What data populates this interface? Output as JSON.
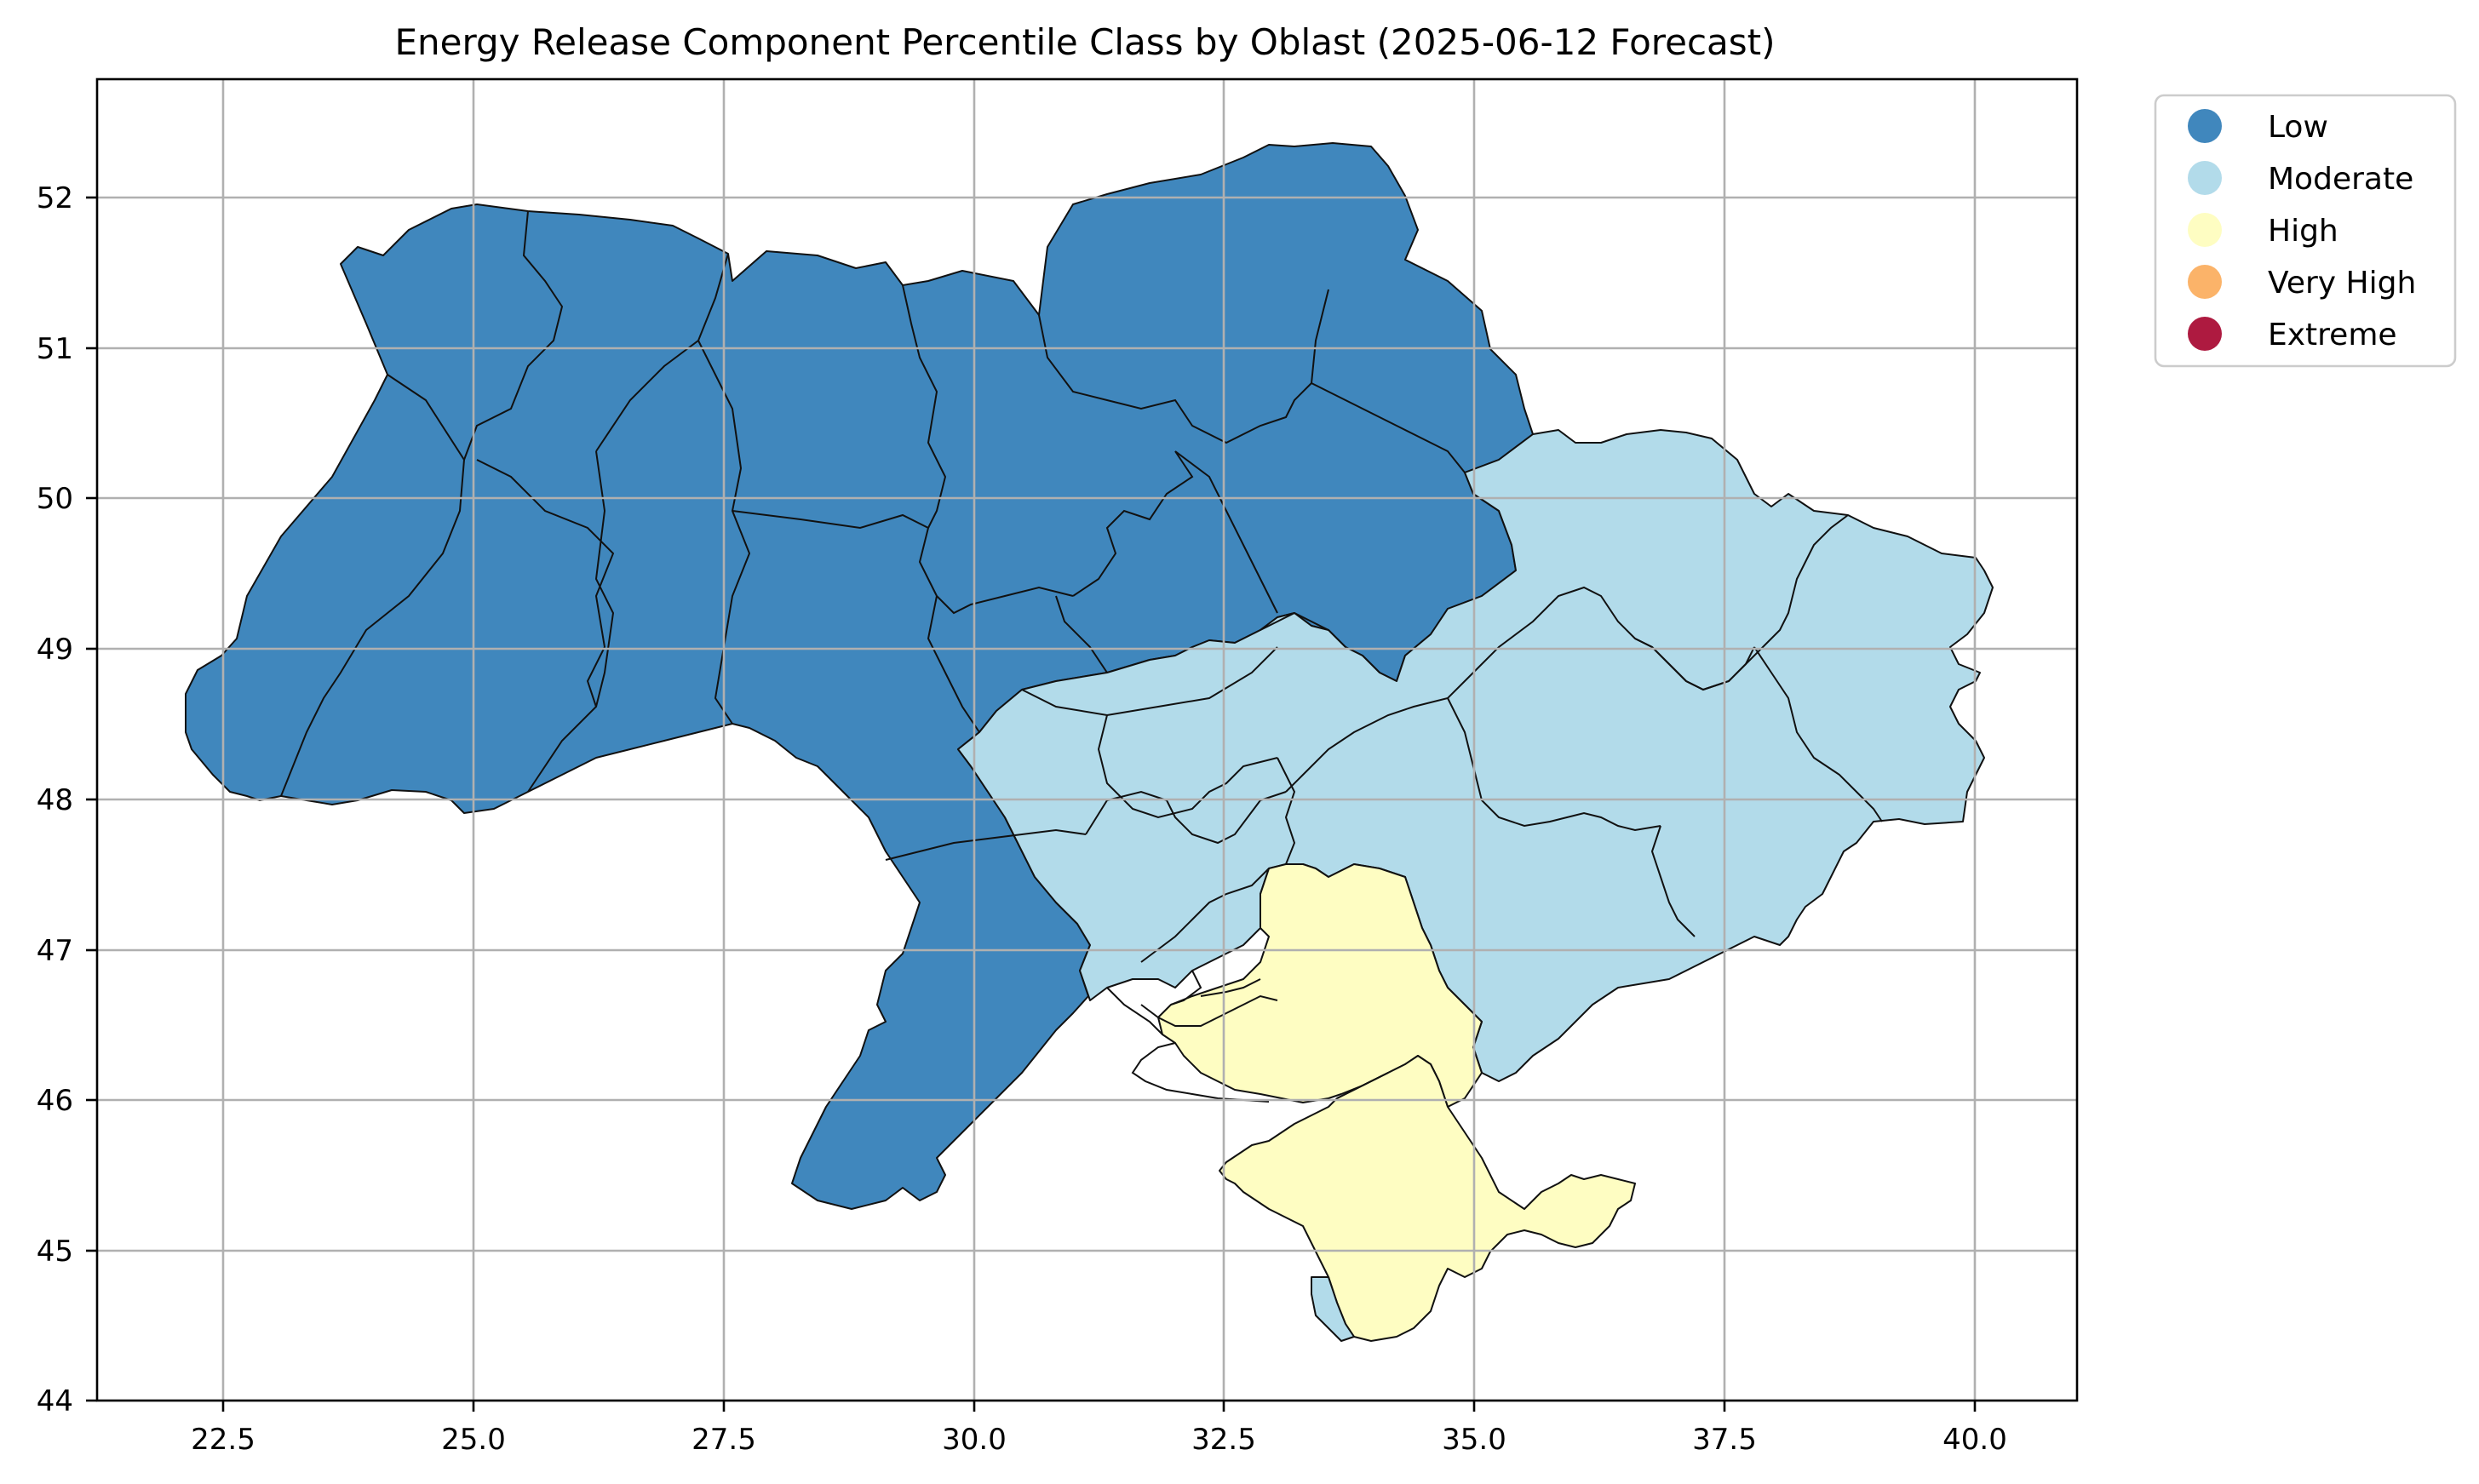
{
  "title": "Energy Release Component Percentile Class by Oblast (2025-06-12 Forecast)",
  "axes": {
    "x_ticks": [
      "22.5",
      "25.0",
      "27.5",
      "30.0",
      "32.5",
      "35.0",
      "37.5",
      "40.0"
    ],
    "y_ticks": [
      "44",
      "45",
      "46",
      "47",
      "48",
      "49",
      "50",
      "51",
      "52"
    ],
    "x_range": [
      21.25,
      41.0
    ],
    "y_range": [
      43.98,
      52.78
    ],
    "grid": true
  },
  "legend": {
    "placement": "outside-upper-right",
    "items": [
      {
        "label": "Low",
        "color": "#4087bd"
      },
      {
        "label": "Moderate",
        "color": "#b2dbea"
      },
      {
        "label": "High",
        "color": "#fefdc2"
      },
      {
        "label": "Very High",
        "color": "#fbb369"
      },
      {
        "label": "Extreme",
        "color": "#ae1a40"
      }
    ]
  },
  "classes": {
    "low": "#4087bd",
    "moderate": "#b2dbea",
    "high": "#fefdc2"
  }
}
